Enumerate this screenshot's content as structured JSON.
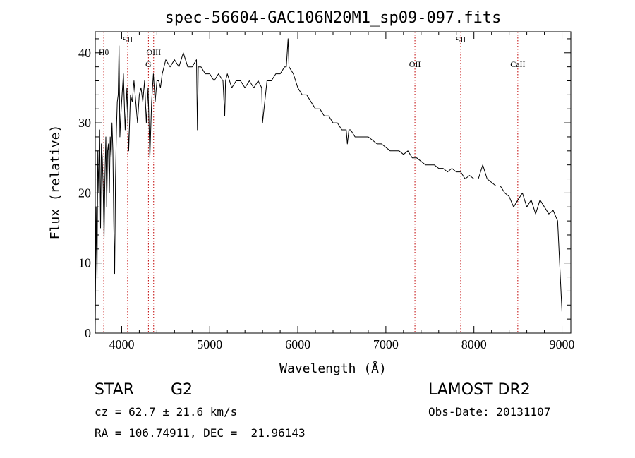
{
  "chart_data": {
    "type": "line",
    "title": "spec-56604-GAC106N20M1_sp09-097.fits",
    "xlabel": "Wavelength (Å)",
    "ylabel": "Flux (relative)",
    "xlim": [
      3700,
      9100
    ],
    "ylim": [
      0,
      43
    ],
    "x_ticks": [
      4000,
      5000,
      6000,
      7000,
      8000,
      9000
    ],
    "y_ticks": [
      0,
      10,
      20,
      30,
      40
    ],
    "grid": false,
    "series": [
      {
        "x": [
          3700,
          3710,
          3720,
          3730,
          3740,
          3750,
          3760,
          3770,
          3780,
          3790,
          3800,
          3810,
          3820,
          3830,
          3840,
          3850,
          3860,
          3870,
          3880,
          3890,
          3900,
          3910,
          3920,
          3930,
          3940,
          3950,
          3960,
          3970,
          3980,
          3990,
          4000,
          4020,
          4040,
          4060,
          4080,
          4100,
          4120,
          4140,
          4160,
          4180,
          4200,
          4220,
          4240,
          4260,
          4280,
          4300,
          4320,
          4340,
          4360,
          4380,
          4400,
          4420,
          4440,
          4460,
          4480,
          4500,
          4550,
          4600,
          4650,
          4700,
          4750,
          4800,
          4850,
          4860,
          4870,
          4900,
          4950,
          5000,
          5050,
          5100,
          5150,
          5170,
          5180,
          5200,
          5250,
          5300,
          5350,
          5400,
          5450,
          5500,
          5550,
          5590,
          5600,
          5650,
          5700,
          5750,
          5800,
          5850,
          5870,
          5890,
          5900,
          5950,
          6000,
          6050,
          6100,
          6150,
          6200,
          6250,
          6300,
          6350,
          6400,
          6450,
          6500,
          6550,
          6563,
          6580,
          6600,
          6650,
          6700,
          6750,
          6800,
          6850,
          6900,
          6950,
          7000,
          7050,
          7100,
          7150,
          7200,
          7250,
          7300,
          7350,
          7400,
          7450,
          7500,
          7550,
          7600,
          7650,
          7700,
          7750,
          7800,
          7850,
          7900,
          7950,
          8000,
          8050,
          8100,
          8150,
          8200,
          8250,
          8300,
          8350,
          8400,
          8450,
          8500,
          8550,
          8600,
          8650,
          8700,
          8750,
          8800,
          8850,
          8900,
          8950,
          9000
        ],
        "y": [
          1,
          18,
          7.5,
          26,
          20,
          29,
          15,
          27,
          25,
          21,
          13.5,
          22,
          28,
          18,
          26,
          27,
          20,
          28,
          25,
          30,
          26,
          16,
          8.5,
          22,
          29,
          33,
          34,
          41,
          28,
          31,
          33,
          37,
          29,
          35,
          26,
          34,
          33,
          36,
          33,
          30,
          34,
          35,
          33,
          36,
          30,
          35,
          25,
          33,
          37,
          33,
          36,
          36,
          35,
          37,
          38,
          39,
          38,
          39,
          38,
          40,
          38,
          38,
          39,
          29,
          38,
          38,
          37,
          37,
          36,
          37,
          36,
          31,
          36,
          37,
          35,
          36,
          36,
          35,
          36,
          35,
          36,
          35,
          30,
          36,
          36,
          37,
          37,
          38,
          38,
          42,
          38,
          37,
          35,
          34,
          34,
          33,
          32,
          32,
          31,
          31,
          30,
          30,
          29,
          29,
          27,
          29,
          29,
          28,
          28,
          28,
          28,
          27.5,
          27,
          27,
          26.5,
          26,
          26,
          26,
          25.5,
          26,
          25,
          25,
          24.5,
          24,
          24,
          24,
          23.5,
          23.5,
          23,
          23.5,
          23,
          23,
          22,
          22.5,
          22,
          22,
          24,
          22,
          21.5,
          21,
          21,
          20,
          19.5,
          18,
          19,
          20,
          18,
          19,
          17,
          19,
          18,
          17,
          17.5,
          16,
          3
        ]
      }
    ],
    "annotations": [
      {
        "label": "Hθ",
        "x": 3797
      },
      {
        "label": "SII",
        "x": 4068
      },
      {
        "label": "OIII",
        "x": 4363
      },
      {
        "label": "G",
        "x": 4304
      },
      {
        "label": "OII",
        "x": 7330
      },
      {
        "label": "SII",
        "x": 7850
      },
      {
        "label": "CaII",
        "x": 8498
      }
    ]
  },
  "info": {
    "object_class": "STAR",
    "subclass": "G2",
    "survey": "LAMOST DR2",
    "cz": "cz = 62.7 ± 21.6 km/s",
    "obs_date": "Obs-Date: 20131107",
    "coords": "RA = 106.74911, DEC =  21.96143"
  }
}
